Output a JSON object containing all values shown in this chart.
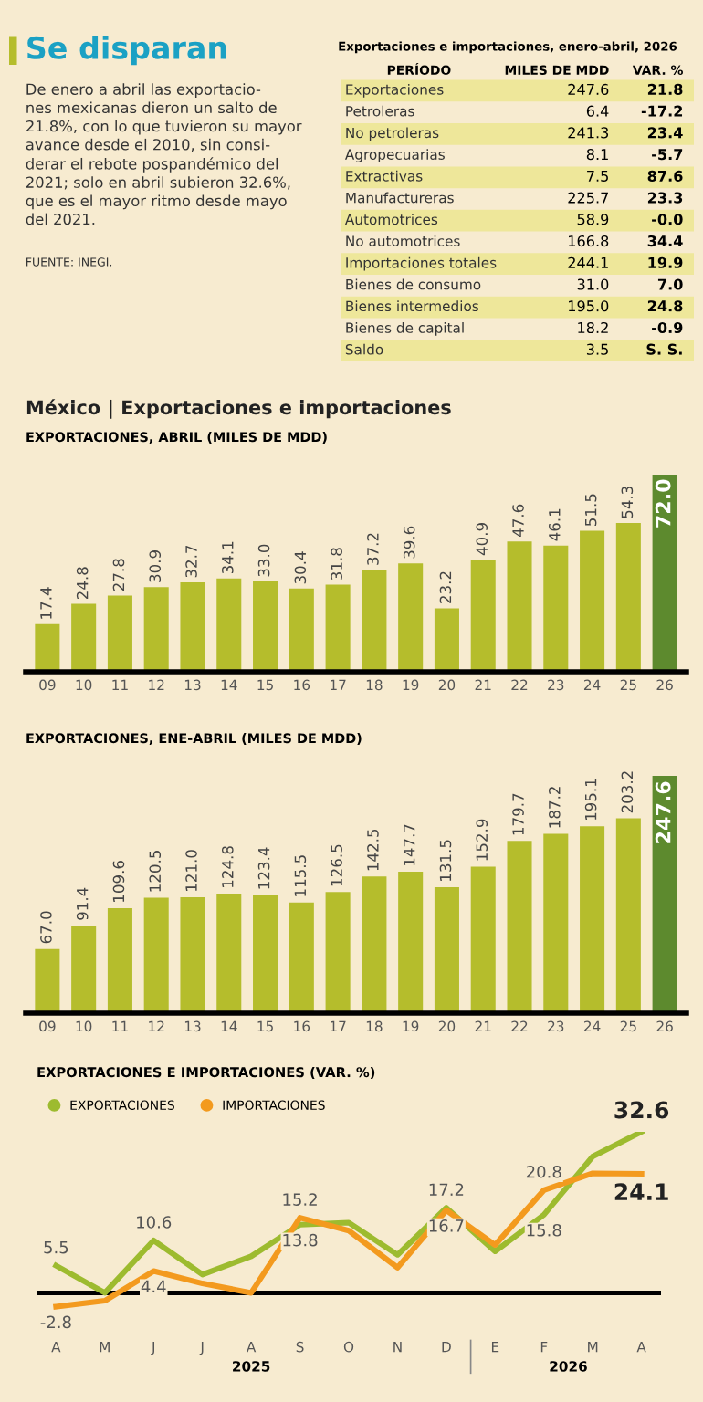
{
  "chart_data": [
    {
      "type": "other",
      "title": "Se disparan",
      "subtitle": "De enero a abril las exportacio-\nnes mexicanas dieron un salto de\n21.8%, con lo que tuvieron su mayor\navance desde el 2010, sin consi-\nderar el rebote pospandémico del\n2021; solo en abril subieron 32.6%,\nque es el mayor ritmo desde mayo\ndel 2021.",
      "annotations": [
        "FUENTE: INEGI."
      ]
    },
    {
      "type": "other",
      "title": "Exportaciones e importaciones, enero-abril, 2026",
      "xlabel": "PERÍODO",
      "categories": [
        "Exportaciones",
        "Petroleras",
        "No petroleras",
        "Agropecuarias",
        "Extractivas",
        "Manufactureras",
        "Automotrices",
        "No automotrices",
        "Importaciones totales",
        "Bienes de consumo",
        "Bienes intermedios",
        "Bienes de capital",
        "Saldo"
      ],
      "series": [
        {
          "name": "MILES DE MDD",
          "values": [
            247.6,
            6.4,
            241.3,
            8.1,
            7.5,
            225.7,
            58.9,
            166.8,
            244.1,
            31.0,
            195.0,
            18.2,
            3.5
          ],
          "value_labels": [
            "247.6",
            "6.4",
            "241.3",
            "8.1",
            "7.5",
            "225.7",
            "58.9",
            "166.8",
            "244.1",
            "31.0",
            "195.0",
            "18.2",
            "3.5"
          ]
        },
        {
          "name": "VAR. %",
          "values": [
            21.8,
            -17.2,
            23.4,
            -5.7,
            87.6,
            23.3,
            -0.0,
            34.4,
            19.9,
            7.0,
            24.8,
            -0.9,
            null
          ],
          "value_labels": [
            "21.8",
            "-17.2",
            "23.4",
            "-5.7",
            "87.6",
            "23.3",
            "-0.0",
            "34.4",
            "19.9",
            "7.0",
            "24.8",
            "-0.9",
            "S. S."
          ]
        }
      ]
    },
    {
      "type": "bar",
      "title": "México | Exportaciones e importaciones",
      "subtitle": "EXPORTACIONES, ABRIL (MILES DE MDD)",
      "categories": [
        "09",
        "10",
        "11",
        "12",
        "13",
        "14",
        "15",
        "16",
        "17",
        "18",
        "19",
        "20",
        "21",
        "22",
        "23",
        "24",
        "25",
        "26"
      ],
      "values": [
        17.4,
        24.8,
        27.8,
        30.9,
        32.7,
        34.1,
        33.0,
        30.4,
        31.8,
        37.2,
        39.6,
        23.2,
        40.9,
        47.6,
        46.1,
        51.5,
        54.3,
        72.0
      ],
      "value_labels": [
        "17.4",
        "24.8",
        "27.8",
        "30.9",
        "32.7",
        "34.1",
        "33.0",
        "30.4",
        "31.8",
        "37.2",
        "39.6",
        "23.2",
        "40.9",
        "47.6",
        "46.1",
        "51.5",
        "54.3",
        "72.0"
      ],
      "colors": [
        "#b5bd2c",
        "#b5bd2c",
        "#b5bd2c",
        "#b5bd2c",
        "#b5bd2c",
        "#b5bd2c",
        "#b5bd2c",
        "#b5bd2c",
        "#b5bd2c",
        "#b5bd2c",
        "#b5bd2c",
        "#b5bd2c",
        "#b5bd2c",
        "#b5bd2c",
        "#b5bd2c",
        "#b5bd2c",
        "#b5bd2c",
        "#5d8a2e"
      ],
      "tick_labels": "x"
    },
    {
      "type": "bar",
      "subtitle": "EXPORTACIONES, ENE-ABRIL (MILES DE MDD)",
      "categories": [
        "09",
        "10",
        "11",
        "12",
        "13",
        "14",
        "15",
        "16",
        "17",
        "18",
        "19",
        "20",
        "21",
        "22",
        "23",
        "24",
        "25",
        "26"
      ],
      "values": [
        67.0,
        91.4,
        109.6,
        120.5,
        121.0,
        124.8,
        123.4,
        115.5,
        126.5,
        142.5,
        147.7,
        131.5,
        152.9,
        179.7,
        187.2,
        195.1,
        203.2,
        247.6
      ],
      "value_labels": [
        "67.0",
        "91.4",
        "109.6",
        "120.5",
        "121.0",
        "124.8",
        "123.4",
        "115.5",
        "126.5",
        "142.5",
        "147.7",
        "131.5",
        "152.9",
        "179.7",
        "187.2",
        "195.1",
        "203.2",
        "247.6"
      ],
      "colors": [
        "#b5bd2c",
        "#b5bd2c",
        "#b5bd2c",
        "#b5bd2c",
        "#b5bd2c",
        "#b5bd2c",
        "#b5bd2c",
        "#b5bd2c",
        "#b5bd2c",
        "#b5bd2c",
        "#b5bd2c",
        "#b5bd2c",
        "#b5bd2c",
        "#b5bd2c",
        "#b5bd2c",
        "#b5bd2c",
        "#b5bd2c",
        "#5d8a2e"
      ],
      "tick_labels": "x"
    },
    {
      "type": "line",
      "title": "EXPORTACIONES E IMPORTACIONES (VAR. %)",
      "categories": [
        "A",
        "M",
        "J",
        "J",
        "A",
        "S",
        "O",
        "N",
        "D",
        "E",
        "F",
        "M",
        "A"
      ],
      "series": [
        {
          "name": "EXPORTACIONES",
          "color": "#9dbb2f",
          "values": [
            5.5,
            0.0,
            10.6,
            3.7,
            7.4,
            13.8,
            14.2,
            7.7,
            17.2,
            8.4,
            15.8,
            27.6,
            32.6
          ],
          "value_labels": [
            "5.5",
            null,
            "10.6",
            null,
            null,
            "13.8",
            null,
            null,
            "17.2",
            null,
            "15.8",
            null,
            "32.6"
          ]
        },
        {
          "name": "IMPORTACIONES",
          "color": "#f39a1e",
          "values": [
            -2.8,
            -1.6,
            4.4,
            1.9,
            0.0,
            15.2,
            12.6,
            5.1,
            16.7,
            9.7,
            20.8,
            24.2,
            24.1
          ],
          "value_labels": [
            "-2.8",
            null,
            "4.4",
            null,
            null,
            "15.2",
            null,
            null,
            "16.7",
            null,
            "20.8",
            null,
            "24.1"
          ]
        }
      ],
      "tick_labels": "x",
      "ref_lines": [
        {
          "axis": "y",
          "value": 0,
          "color": "#000000"
        }
      ],
      "legend": "top left",
      "line_style": "solid",
      "annotations": [
        "2025",
        "2026"
      ]
    }
  ]
}
